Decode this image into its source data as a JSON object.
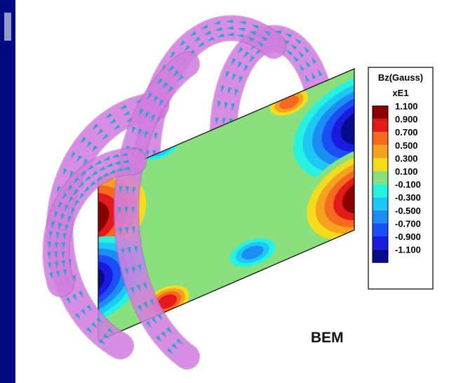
{
  "legend": {
    "title_line1": "Bz(Gauss)",
    "title_line2": "xE1",
    "levels": [
      {
        "label": "1.100",
        "color": "#8b0000"
      },
      {
        "label": "0.900",
        "color": "#e41a1a"
      },
      {
        "label": "0.700",
        "color": "#f56a1e"
      },
      {
        "label": "0.500",
        "color": "#f5a21e"
      },
      {
        "label": "0.300",
        "color": "#f2dc1c"
      },
      {
        "label": "0.100",
        "color": "#8be07e"
      },
      {
        "label": "-0.100",
        "color": "#27f2e0"
      },
      {
        "label": "-0.300",
        "color": "#1cc8f5"
      },
      {
        "label": "-0.500",
        "color": "#1c8df5"
      },
      {
        "label": "-0.700",
        "color": "#1c4ef5"
      },
      {
        "label": "-0.900",
        "color": "#1a1ae0"
      },
      {
        "label": "-1.100",
        "color": "#0a0a8c"
      }
    ]
  },
  "method_label": "BEM",
  "colors": {
    "coil_fill": "#d884e4",
    "coil_edge": "#b25cc4",
    "arrow": "#2aa6c8",
    "left_strip": "#000a80",
    "background": "#ffffff"
  },
  "icons": {
    "arrow": "field-arrow-icon"
  }
}
